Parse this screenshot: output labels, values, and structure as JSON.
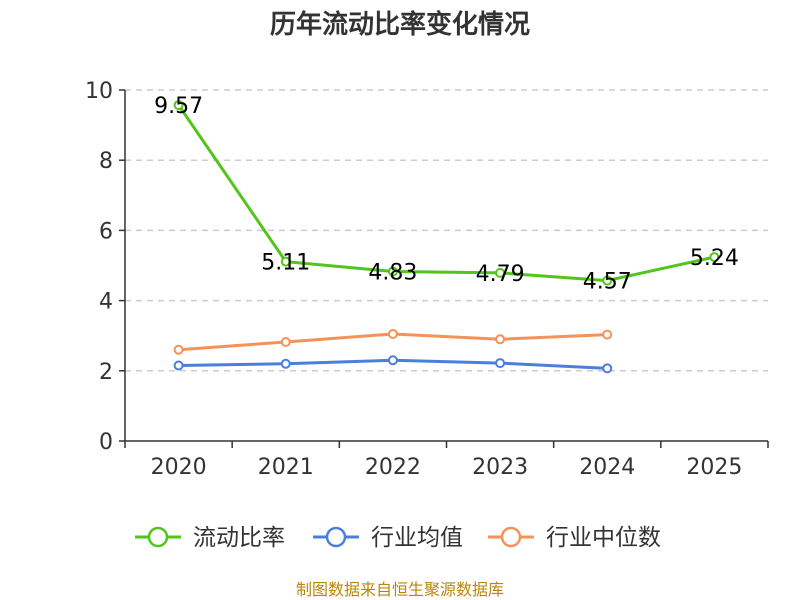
{
  "chart_data": {
    "type": "line",
    "title": "历年流动比率变化情况",
    "categories": [
      "2020",
      "2021",
      "2022",
      "2023",
      "2024",
      "2025"
    ],
    "ylim": [
      0,
      10
    ],
    "yticks": [
      "0",
      "2",
      "4",
      "6",
      "8",
      "10"
    ],
    "grid": true,
    "legend_position": "bottom",
    "series": [
      {
        "name": "流动比率",
        "color": "#52c41a",
        "values": [
          9.57,
          5.11,
          4.83,
          4.79,
          4.57,
          5.24
        ],
        "labels": [
          "9.57",
          "5.11",
          "4.83",
          "4.79",
          "4.57",
          "5.24"
        ]
      },
      {
        "name": "行业均值",
        "color": "#4a7fdb",
        "values": [
          2.15,
          2.2,
          2.3,
          2.22,
          2.07,
          null
        ]
      },
      {
        "name": "行业中位数",
        "color": "#f4925a",
        "values": [
          2.6,
          2.82,
          3.05,
          2.9,
          3.03,
          null
        ]
      }
    ],
    "source": "制图数据来自恒生聚源数据库"
  }
}
